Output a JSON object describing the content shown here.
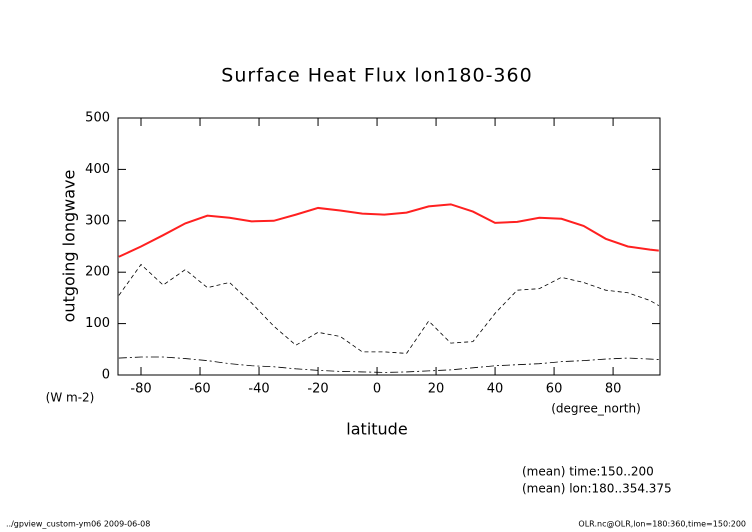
{
  "chart_data": {
    "type": "line",
    "title": "Surface Heat Flux lon180-360",
    "ylabel": "outgoing longwave",
    "yunits": "(W m-2)",
    "xlabel": "latitude",
    "xunits": "(degree_north)",
    "notes": [
      "(mean) time:150..200",
      "(mean) lon:180..354.375"
    ],
    "footer_left": "../gpview_custom-ym06  2009-06-08",
    "footer_right": "OLR.nc@OLR,lon=180:360,time=150:200",
    "x": [
      -87.5,
      -80,
      -72.5,
      -65,
      -57.5,
      -50,
      -42.5,
      -35,
      -27.5,
      -20,
      -12.5,
      -5,
      2.5,
      10,
      17.5,
      25,
      32.5,
      40,
      47.5,
      55,
      62.5,
      70,
      77.5,
      85,
      92.5,
      95.5
    ],
    "series": [
      {
        "color": "#ff2020",
        "style": "solid",
        "values": [
          230,
          250,
          272,
          295,
          310,
          306,
          299,
          300,
          312,
          325,
          320,
          314,
          312,
          316,
          328,
          332,
          318,
          296,
          298,
          306,
          304,
          290,
          265,
          250,
          244,
          242
        ]
      },
      {
        "color": "#000000",
        "style": "dashed",
        "values": [
          155,
          215,
          175,
          205,
          170,
          180,
          140,
          95,
          58,
          83,
          75,
          45,
          45,
          42,
          105,
          62,
          65,
          120,
          165,
          168,
          190,
          180,
          165,
          160,
          145,
          135
        ]
      },
      {
        "color": "#000000",
        "style": "dashdot",
        "values": [
          33,
          35,
          35,
          32,
          28,
          22,
          18,
          16,
          12,
          9,
          7,
          6,
          5,
          6,
          8,
          10,
          14,
          18,
          20,
          22,
          26,
          28,
          31,
          33,
          31,
          30
        ]
      }
    ],
    "xlim": [
      -87.8,
      95.9
    ],
    "ylim": [
      0,
      500
    ],
    "xticks": [
      -80,
      -60,
      -40,
      -20,
      0,
      20,
      40,
      60,
      80
    ],
    "yticks": [
      0,
      100,
      200,
      300,
      400,
      500
    ]
  }
}
